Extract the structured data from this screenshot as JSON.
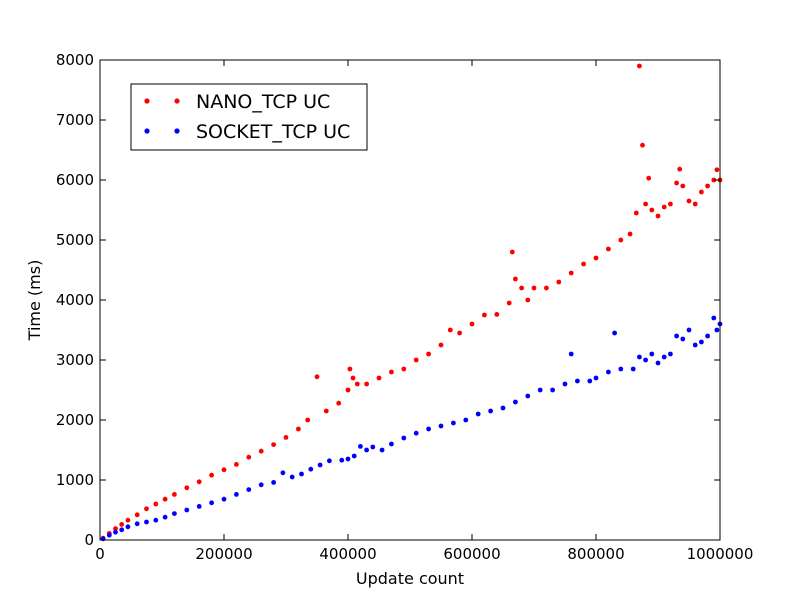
{
  "chart_data": {
    "type": "scatter",
    "title": "",
    "xlabel": "Update count",
    "ylabel": "Time (ms)",
    "xlim": [
      0,
      1000000
    ],
    "ylim": [
      0,
      8000
    ],
    "xticks": [
      "0",
      "200000",
      "400000",
      "600000",
      "800000",
      "1000000"
    ],
    "yticks": [
      "0",
      "1000",
      "2000",
      "3000",
      "4000",
      "5000",
      "6000",
      "7000",
      "8000"
    ],
    "grid": false,
    "legend_position": "top-left",
    "series": [
      {
        "name": "NANO_TCP UC",
        "color": "#ff0000",
        "points": [
          [
            5000,
            30
          ],
          [
            15000,
            110
          ],
          [
            25000,
            190
          ],
          [
            35000,
            260
          ],
          [
            45000,
            330
          ],
          [
            60000,
            420
          ],
          [
            75000,
            520
          ],
          [
            90000,
            600
          ],
          [
            105000,
            680
          ],
          [
            120000,
            760
          ],
          [
            140000,
            870
          ],
          [
            160000,
            970
          ],
          [
            180000,
            1080
          ],
          [
            200000,
            1170
          ],
          [
            220000,
            1260
          ],
          [
            240000,
            1380
          ],
          [
            260000,
            1480
          ],
          [
            280000,
            1590
          ],
          [
            300000,
            1710
          ],
          [
            320000,
            1850
          ],
          [
            335000,
            2000
          ],
          [
            350000,
            2720
          ],
          [
            365000,
            2150
          ],
          [
            385000,
            2280
          ],
          [
            400000,
            2500
          ],
          [
            403000,
            2850
          ],
          [
            408000,
            2700
          ],
          [
            415000,
            2600
          ],
          [
            430000,
            2600
          ],
          [
            450000,
            2700
          ],
          [
            470000,
            2800
          ],
          [
            490000,
            2850
          ],
          [
            510000,
            3000
          ],
          [
            530000,
            3100
          ],
          [
            550000,
            3250
          ],
          [
            565000,
            3500
          ],
          [
            580000,
            3450
          ],
          [
            600000,
            3600
          ],
          [
            620000,
            3750
          ],
          [
            640000,
            3760
          ],
          [
            660000,
            3950
          ],
          [
            665000,
            4800
          ],
          [
            670000,
            4350
          ],
          [
            680000,
            4200
          ],
          [
            690000,
            4000
          ],
          [
            700000,
            4200
          ],
          [
            720000,
            4200
          ],
          [
            740000,
            4300
          ],
          [
            760000,
            4450
          ],
          [
            780000,
            4600
          ],
          [
            800000,
            4700
          ],
          [
            820000,
            4850
          ],
          [
            840000,
            5000
          ],
          [
            855000,
            5100
          ],
          [
            865000,
            5450
          ],
          [
            870000,
            7900
          ],
          [
            875000,
            6580
          ],
          [
            880000,
            5600
          ],
          [
            885000,
            6030
          ],
          [
            890000,
            5500
          ],
          [
            900000,
            5400
          ],
          [
            910000,
            5550
          ],
          [
            920000,
            5600
          ],
          [
            930000,
            5950
          ],
          [
            935000,
            6180
          ],
          [
            940000,
            5900
          ],
          [
            950000,
            5650
          ],
          [
            960000,
            5600
          ],
          [
            970000,
            5800
          ],
          [
            980000,
            5900
          ],
          [
            990000,
            6000
          ],
          [
            995000,
            6170
          ],
          [
            1000000,
            6000
          ]
        ]
      },
      {
        "name": "SOCKET_TCP UC",
        "color": "#0000ff",
        "points": [
          [
            5000,
            20
          ],
          [
            15000,
            80
          ],
          [
            25000,
            130
          ],
          [
            35000,
            170
          ],
          [
            45000,
            220
          ],
          [
            60000,
            270
          ],
          [
            75000,
            300
          ],
          [
            90000,
            330
          ],
          [
            105000,
            380
          ],
          [
            120000,
            440
          ],
          [
            140000,
            500
          ],
          [
            160000,
            560
          ],
          [
            180000,
            620
          ],
          [
            200000,
            680
          ],
          [
            220000,
            760
          ],
          [
            240000,
            840
          ],
          [
            260000,
            920
          ],
          [
            280000,
            960
          ],
          [
            295000,
            1120
          ],
          [
            310000,
            1050
          ],
          [
            325000,
            1100
          ],
          [
            340000,
            1180
          ],
          [
            355000,
            1250
          ],
          [
            370000,
            1320
          ],
          [
            390000,
            1330
          ],
          [
            400000,
            1350
          ],
          [
            410000,
            1400
          ],
          [
            420000,
            1560
          ],
          [
            430000,
            1500
          ],
          [
            440000,
            1550
          ],
          [
            455000,
            1500
          ],
          [
            470000,
            1600
          ],
          [
            490000,
            1700
          ],
          [
            510000,
            1780
          ],
          [
            530000,
            1850
          ],
          [
            550000,
            1900
          ],
          [
            570000,
            1950
          ],
          [
            590000,
            2000
          ],
          [
            610000,
            2100
          ],
          [
            630000,
            2150
          ],
          [
            650000,
            2200
          ],
          [
            670000,
            2300
          ],
          [
            690000,
            2400
          ],
          [
            710000,
            2500
          ],
          [
            730000,
            2500
          ],
          [
            750000,
            2600
          ],
          [
            760000,
            3100
          ],
          [
            770000,
            2650
          ],
          [
            790000,
            2650
          ],
          [
            800000,
            2700
          ],
          [
            820000,
            2800
          ],
          [
            830000,
            3450
          ],
          [
            840000,
            2850
          ],
          [
            860000,
            2850
          ],
          [
            870000,
            3050
          ],
          [
            880000,
            3000
          ],
          [
            890000,
            3100
          ],
          [
            900000,
            2950
          ],
          [
            910000,
            3050
          ],
          [
            920000,
            3100
          ],
          [
            930000,
            3400
          ],
          [
            940000,
            3350
          ],
          [
            950000,
            3500
          ],
          [
            960000,
            3250
          ],
          [
            970000,
            3300
          ],
          [
            980000,
            3400
          ],
          [
            990000,
            3700
          ],
          [
            995000,
            3500
          ],
          [
            1000000,
            3600
          ]
        ]
      }
    ]
  }
}
